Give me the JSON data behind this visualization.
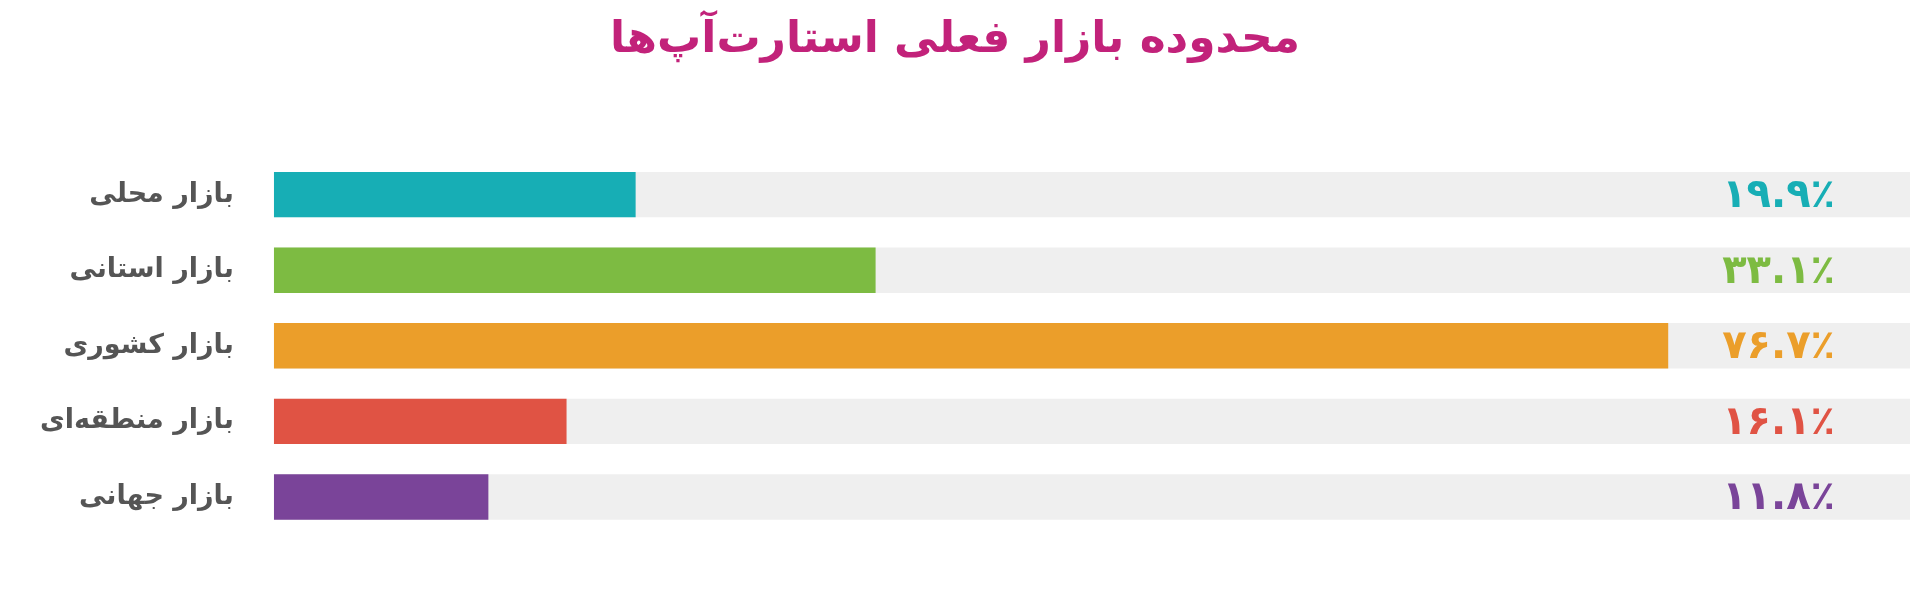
{
  "chart_data": {
    "type": "bar",
    "orientation": "horizontal",
    "title": "محدوده بازار فعلی استارت‌آپ‌ها",
    "categories": [
      "بازار محلی",
      "بازار استانی",
      "بازار کشوری",
      "بازار منطقه‌ای",
      "بازار جهانی"
    ],
    "values": [
      19.9,
      33.1,
      76.7,
      16.1,
      11.8
    ],
    "colors": [
      "#17aeb5",
      "#7dbb42",
      "#eb9e2a",
      "#e05344",
      "#7a4499"
    ],
    "value_labels": [
      "۱۹.۹٪",
      "۳۳.۱٪",
      "۷۶.۷٪",
      "۱۶.۱٪",
      "۱۱.۸٪"
    ],
    "grid": false,
    "legend": false,
    "tick_labels": "y"
  }
}
